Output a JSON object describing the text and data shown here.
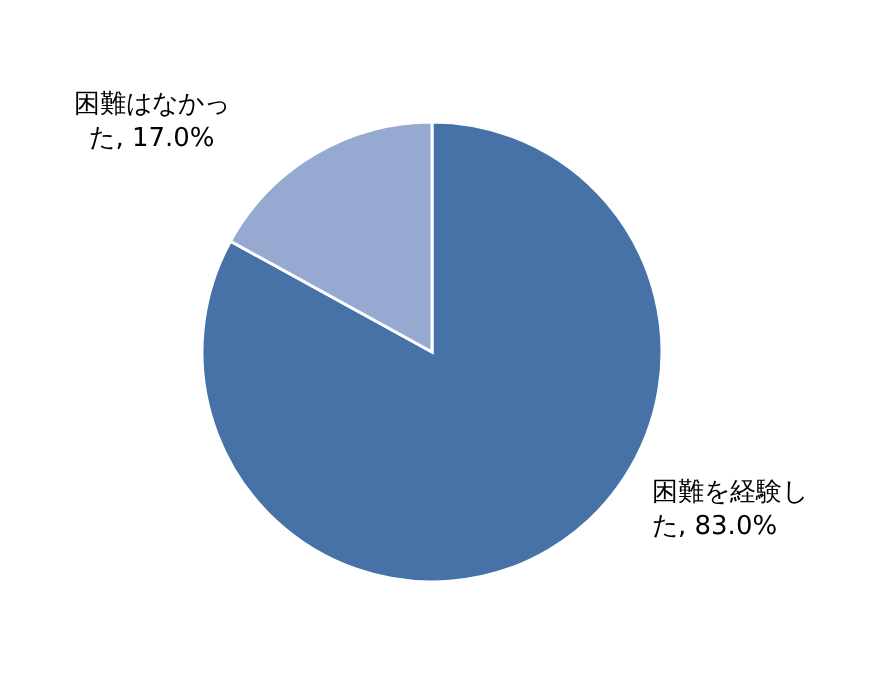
{
  "chart_data": {
    "type": "pie",
    "categories": [
      "困難を経験した",
      "困難はなかった"
    ],
    "values": [
      83.0,
      17.0
    ],
    "colors": [
      "#4672a8",
      "#95a9d1"
    ],
    "value_labels": [
      "83.0%",
      "17.0%"
    ]
  }
}
